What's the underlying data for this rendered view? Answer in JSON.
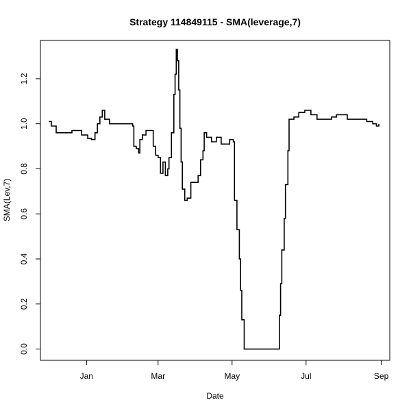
{
  "chart_data": {
    "type": "line",
    "title": "Strategy 114849115 - SMA(leverage,7)",
    "xlabel": "Date",
    "ylabel": "SMA(Lev,7)",
    "x_ticks": [
      "Jan",
      "Mar",
      "May",
      "Jul",
      "Sep"
    ],
    "x_tick_dates": [
      "2013-01-01",
      "2013-03-01",
      "2013-05-01",
      "2013-07-01",
      "2013-09-01"
    ],
    "y_ticks": [
      "0.0",
      "0.2",
      "0.4",
      "0.6",
      "0.8",
      "1.0",
      "1.2"
    ],
    "ylim": [
      -0.05,
      1.37
    ],
    "xlim": [
      "2012-11-24",
      "2013-09-08"
    ],
    "grid": false,
    "line_style": "step",
    "series": [
      {
        "color": "#000000",
        "points": [
          [
            "2012-12-01",
            1.01
          ],
          [
            "2012-12-03",
            0.99
          ],
          [
            "2012-12-07",
            0.96
          ],
          [
            "2012-12-15",
            0.96
          ],
          [
            "2012-12-20",
            0.97
          ],
          [
            "2012-12-26",
            0.97
          ],
          [
            "2012-12-28",
            0.95
          ],
          [
            "2013-01-02",
            0.935
          ],
          [
            "2013-01-05",
            0.93
          ],
          [
            "2013-01-08",
            0.96
          ],
          [
            "2013-01-10",
            1.0
          ],
          [
            "2013-01-12",
            1.03
          ],
          [
            "2013-01-14",
            1.06
          ],
          [
            "2013-01-16",
            1.02
          ],
          [
            "2013-01-20",
            1.0
          ],
          [
            "2013-01-30",
            1.0
          ],
          [
            "2013-02-05",
            1.0
          ],
          [
            "2013-02-08",
            0.99
          ],
          [
            "2013-02-09",
            0.9
          ],
          [
            "2013-02-11",
            0.89
          ],
          [
            "2013-02-13",
            0.87
          ],
          [
            "2013-02-14",
            0.93
          ],
          [
            "2013-02-16",
            0.95
          ],
          [
            "2013-02-19",
            0.97
          ],
          [
            "2013-02-24",
            0.97
          ],
          [
            "2013-02-25",
            0.9
          ],
          [
            "2013-02-27",
            0.86
          ],
          [
            "2013-03-01",
            0.85
          ],
          [
            "2013-03-03",
            0.78
          ],
          [
            "2013-03-05",
            0.83
          ],
          [
            "2013-03-07",
            0.77
          ],
          [
            "2013-03-09",
            0.8
          ],
          [
            "2013-03-10",
            0.85
          ],
          [
            "2013-03-12",
            0.96
          ],
          [
            "2013-03-14",
            1.13
          ],
          [
            "2013-03-15",
            1.22
          ],
          [
            "2013-03-16",
            1.33
          ],
          [
            "2013-03-17",
            1.28
          ],
          [
            "2013-03-18",
            1.15
          ],
          [
            "2013-03-19",
            0.98
          ],
          [
            "2013-03-20",
            0.83
          ],
          [
            "2013-03-21",
            0.71
          ],
          [
            "2013-03-23",
            0.66
          ],
          [
            "2013-03-25",
            0.67
          ],
          [
            "2013-03-28",
            0.74
          ],
          [
            "2013-04-03",
            0.77
          ],
          [
            "2013-04-05",
            0.84
          ],
          [
            "2013-04-07",
            0.88
          ],
          [
            "2013-04-08",
            0.96
          ],
          [
            "2013-04-10",
            0.94
          ],
          [
            "2013-04-14",
            0.92
          ],
          [
            "2013-04-18",
            0.94
          ],
          [
            "2013-04-22",
            0.91
          ],
          [
            "2013-04-26",
            0.91
          ],
          [
            "2013-04-29",
            0.93
          ],
          [
            "2013-05-02",
            0.92
          ],
          [
            "2013-05-03",
            0.66
          ],
          [
            "2013-05-05",
            0.53
          ],
          [
            "2013-05-07",
            0.4
          ],
          [
            "2013-05-08",
            0.26
          ],
          [
            "2013-05-09",
            0.13
          ],
          [
            "2013-05-11",
            0.0
          ],
          [
            "2013-06-08",
            0.0
          ],
          [
            "2013-06-09",
            0.15
          ],
          [
            "2013-06-10",
            0.29
          ],
          [
            "2013-06-11",
            0.44
          ],
          [
            "2013-06-13",
            0.58
          ],
          [
            "2013-06-14",
            0.73
          ],
          [
            "2013-06-16",
            0.88
          ],
          [
            "2013-06-17",
            1.02
          ],
          [
            "2013-06-21",
            1.03
          ],
          [
            "2013-06-25",
            1.05
          ],
          [
            "2013-06-30",
            1.06
          ],
          [
            "2013-07-05",
            1.04
          ],
          [
            "2013-07-10",
            1.02
          ],
          [
            "2013-07-18",
            1.02
          ],
          [
            "2013-07-22",
            1.03
          ],
          [
            "2013-07-26",
            1.04
          ],
          [
            "2013-07-30",
            1.04
          ],
          [
            "2013-08-04",
            1.02
          ],
          [
            "2013-08-15",
            1.02
          ],
          [
            "2013-08-20",
            1.01
          ],
          [
            "2013-08-25",
            1.0
          ],
          [
            "2013-08-28",
            0.99
          ],
          [
            "2013-08-30",
            1.0
          ]
        ]
      }
    ]
  }
}
